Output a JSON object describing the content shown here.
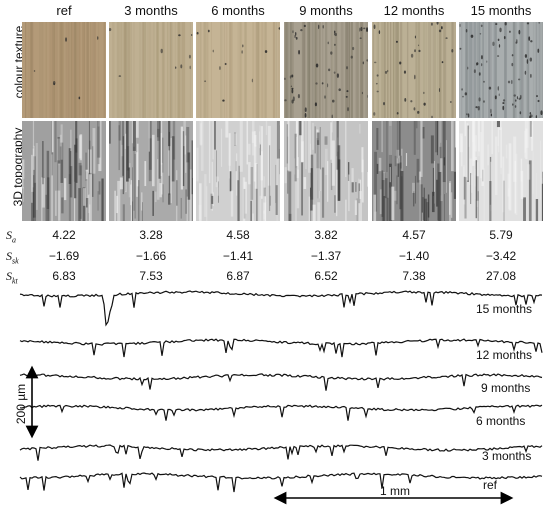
{
  "columns": [
    "ref",
    "3 months",
    "6 months",
    "9 months",
    "12 months",
    "15 months"
  ],
  "row_labels": {
    "colour": "colour texture",
    "topo": "3D topography"
  },
  "colour_tiles": [
    {
      "base": "#b39a78",
      "tint": "#9c8463",
      "speck": 0.02
    },
    {
      "base": "#bfb092",
      "tint": "#a89878",
      "speck": 0.03
    },
    {
      "base": "#c5b495",
      "tint": "#ad9c7c",
      "speck": 0.04
    },
    {
      "base": "#a8a090",
      "tint": "#7f7866",
      "speck": 0.18
    },
    {
      "base": "#bbb095",
      "tint": "#9a8f74",
      "speck": 0.12
    },
    {
      "base": "#a9aeaf",
      "tint": "#7e8486",
      "speck": 0.25
    }
  ],
  "topo_tiles": [
    {
      "base": "#a0a0a0",
      "dark": 0.55
    },
    {
      "base": "#aaaaaa",
      "dark": 0.5
    },
    {
      "base": "#d0d0d0",
      "dark": 0.35
    },
    {
      "base": "#c4c4c4",
      "dark": 0.4
    },
    {
      "base": "#8c8c8c",
      "dark": 0.6
    },
    {
      "base": "#e0e0e0",
      "dark": 0.3
    }
  ],
  "params": [
    {
      "label": "S",
      "sub": "a",
      "values": [
        "4.22",
        "3.28",
        "4.58",
        "3.82",
        "4.57",
        "5.79"
      ]
    },
    {
      "label": "S",
      "sub": "sk",
      "values": [
        "−1.69",
        "−1.66",
        "−1.41",
        "−1.37",
        "−1.40",
        "−3.42"
      ]
    },
    {
      "label": "S",
      "sub": "kt",
      "values": [
        "6.83",
        "7.53",
        "6.87",
        "6.52",
        "7.38",
        "27.08"
      ]
    }
  ],
  "profiles": [
    {
      "label": "15 months",
      "seed": 6
    },
    {
      "label": "12 months",
      "seed": 5
    },
    {
      "label": "9 months",
      "seed": 4
    },
    {
      "label": "6 months",
      "seed": 3
    },
    {
      "label": "3 months",
      "seed": 2
    },
    {
      "label": "ref",
      "seed": 1
    }
  ],
  "scale": {
    "vertical": "200 µm",
    "horizontal": "1 mm"
  }
}
